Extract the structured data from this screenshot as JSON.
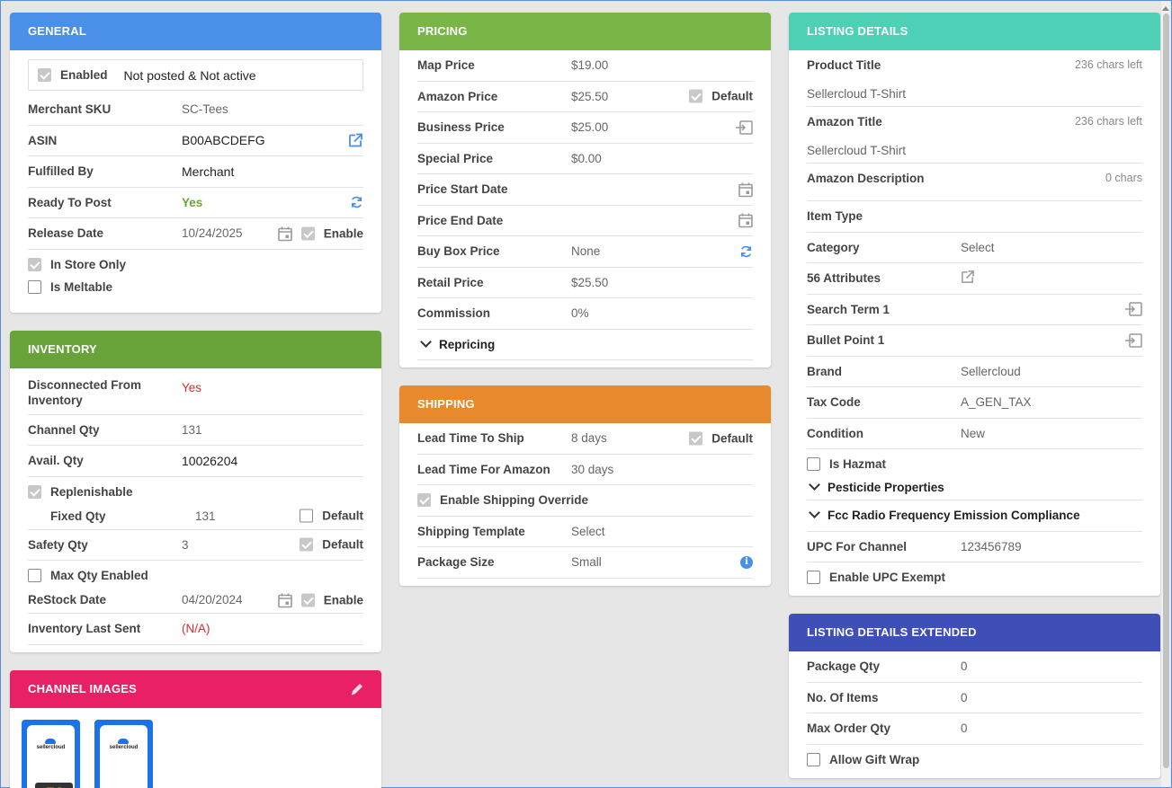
{
  "general": {
    "title": "GENERAL",
    "enabled_label": "Enabled",
    "status_text": "Not posted & Not active",
    "merchant_sku_label": "Merchant SKU",
    "merchant_sku": "SC-Tees",
    "asin_label": "ASIN",
    "asin": "B00ABCDEFG",
    "fulfilled_by_label": "Fulfilled By",
    "fulfilled_by": "Merchant",
    "ready_label": "Ready To Post",
    "ready": "Yes",
    "release_label": "Release Date",
    "release_date": "10/24/2025",
    "release_enable": "Enable",
    "in_store_only": "In Store Only",
    "is_meltable": "Is Meltable"
  },
  "inventory": {
    "title": "INVENTORY",
    "disconnected_label": "Disconnected From Inventory",
    "disconnected": "Yes",
    "channel_qty_label": "Channel Qty",
    "channel_qty": "131",
    "avail_qty_label": "Avail. Qty",
    "avail_qty": "10026204",
    "replenishable": "Replenishable",
    "fixed_qty_label": "Fixed Qty",
    "fixed_qty": "131",
    "fixed_default": "Default",
    "safety_qty_label": "Safety Qty",
    "safety_qty": "3",
    "safety_default": "Default",
    "max_qty_enabled": "Max Qty Enabled",
    "restock_label": "ReStock Date",
    "restock_date": "04/20/2024",
    "restock_enable": "Enable",
    "last_sent_label": "Inventory Last Sent",
    "last_sent": "(N/A)"
  },
  "channel_images": {
    "title": "CHANNEL IMAGES",
    "brand": "sellercloud"
  },
  "pricing": {
    "title": "PRICING",
    "map_label": "Map Price",
    "map": "$19.00",
    "amazon_label": "Amazon Price",
    "amazon": "$25.50",
    "amazon_default": "Default",
    "business_label": "Business Price",
    "business": "$25.00",
    "special_label": "Special Price",
    "special": "$0.00",
    "start_label": "Price Start Date",
    "end_label": "Price End Date",
    "buybox_label": "Buy Box Price",
    "buybox": "None",
    "retail_label": "Retail Price",
    "retail": "$25.50",
    "commission_label": "Commission",
    "commission": "0%",
    "repricing": "Repricing"
  },
  "shipping": {
    "title": "SHIPPING",
    "lead_ship_label": "Lead Time To Ship",
    "lead_ship": "8 days",
    "lead_default": "Default",
    "lead_amazon_label": "Lead Time For Amazon",
    "lead_amazon": "30 days",
    "override": "Enable Shipping Override",
    "template_label": "Shipping Template",
    "template": "Select",
    "package_label": "Package Size",
    "package": "Small"
  },
  "listing": {
    "title": "LISTING DETAILS",
    "product_title_label": "Product Title",
    "product_title_meta": "236 chars left",
    "product_title": "Sellercloud T-Shirt",
    "amazon_title_label": "Amazon Title",
    "amazon_title_meta": "236 chars left",
    "amazon_title": "Sellercloud T-Shirt",
    "amazon_desc_label": "Amazon Description",
    "amazon_desc_meta": "0 chars",
    "item_type_label": "Item Type",
    "category_label": "Category",
    "category": "Select",
    "attributes_label": "56 Attributes",
    "search_term_label": "Search Term 1",
    "bullet_label": "Bullet Point 1",
    "brand_label": "Brand",
    "brand": "Sellercloud",
    "tax_label": "Tax Code",
    "tax": "A_GEN_TAX",
    "condition_label": "Condition",
    "condition": "New",
    "is_hazmat": "Is Hazmat",
    "pesticide": "Pesticide Properties",
    "fcc": "Fcc Radio Frequency Emission Compliance",
    "upc_label": "UPC For Channel",
    "upc": "123456789",
    "upc_exempt": "Enable UPC Exempt"
  },
  "extended": {
    "title": "LISTING DETAILS EXTENDED",
    "package_qty_label": "Package Qty",
    "package_qty": "0",
    "items_label": "No. Of Items",
    "items": "0",
    "max_order_label": "Max Order Qty",
    "max_order": "0",
    "gift_wrap": "Allow Gift Wrap"
  },
  "colors": {
    "general": "#4a8fe8",
    "inventory": "#68a33a",
    "images": "#ea2066",
    "pricing": "#7ab547",
    "shipping": "#e8892d",
    "listing": "#4dd0b5",
    "extended": "#3f4fb8"
  }
}
